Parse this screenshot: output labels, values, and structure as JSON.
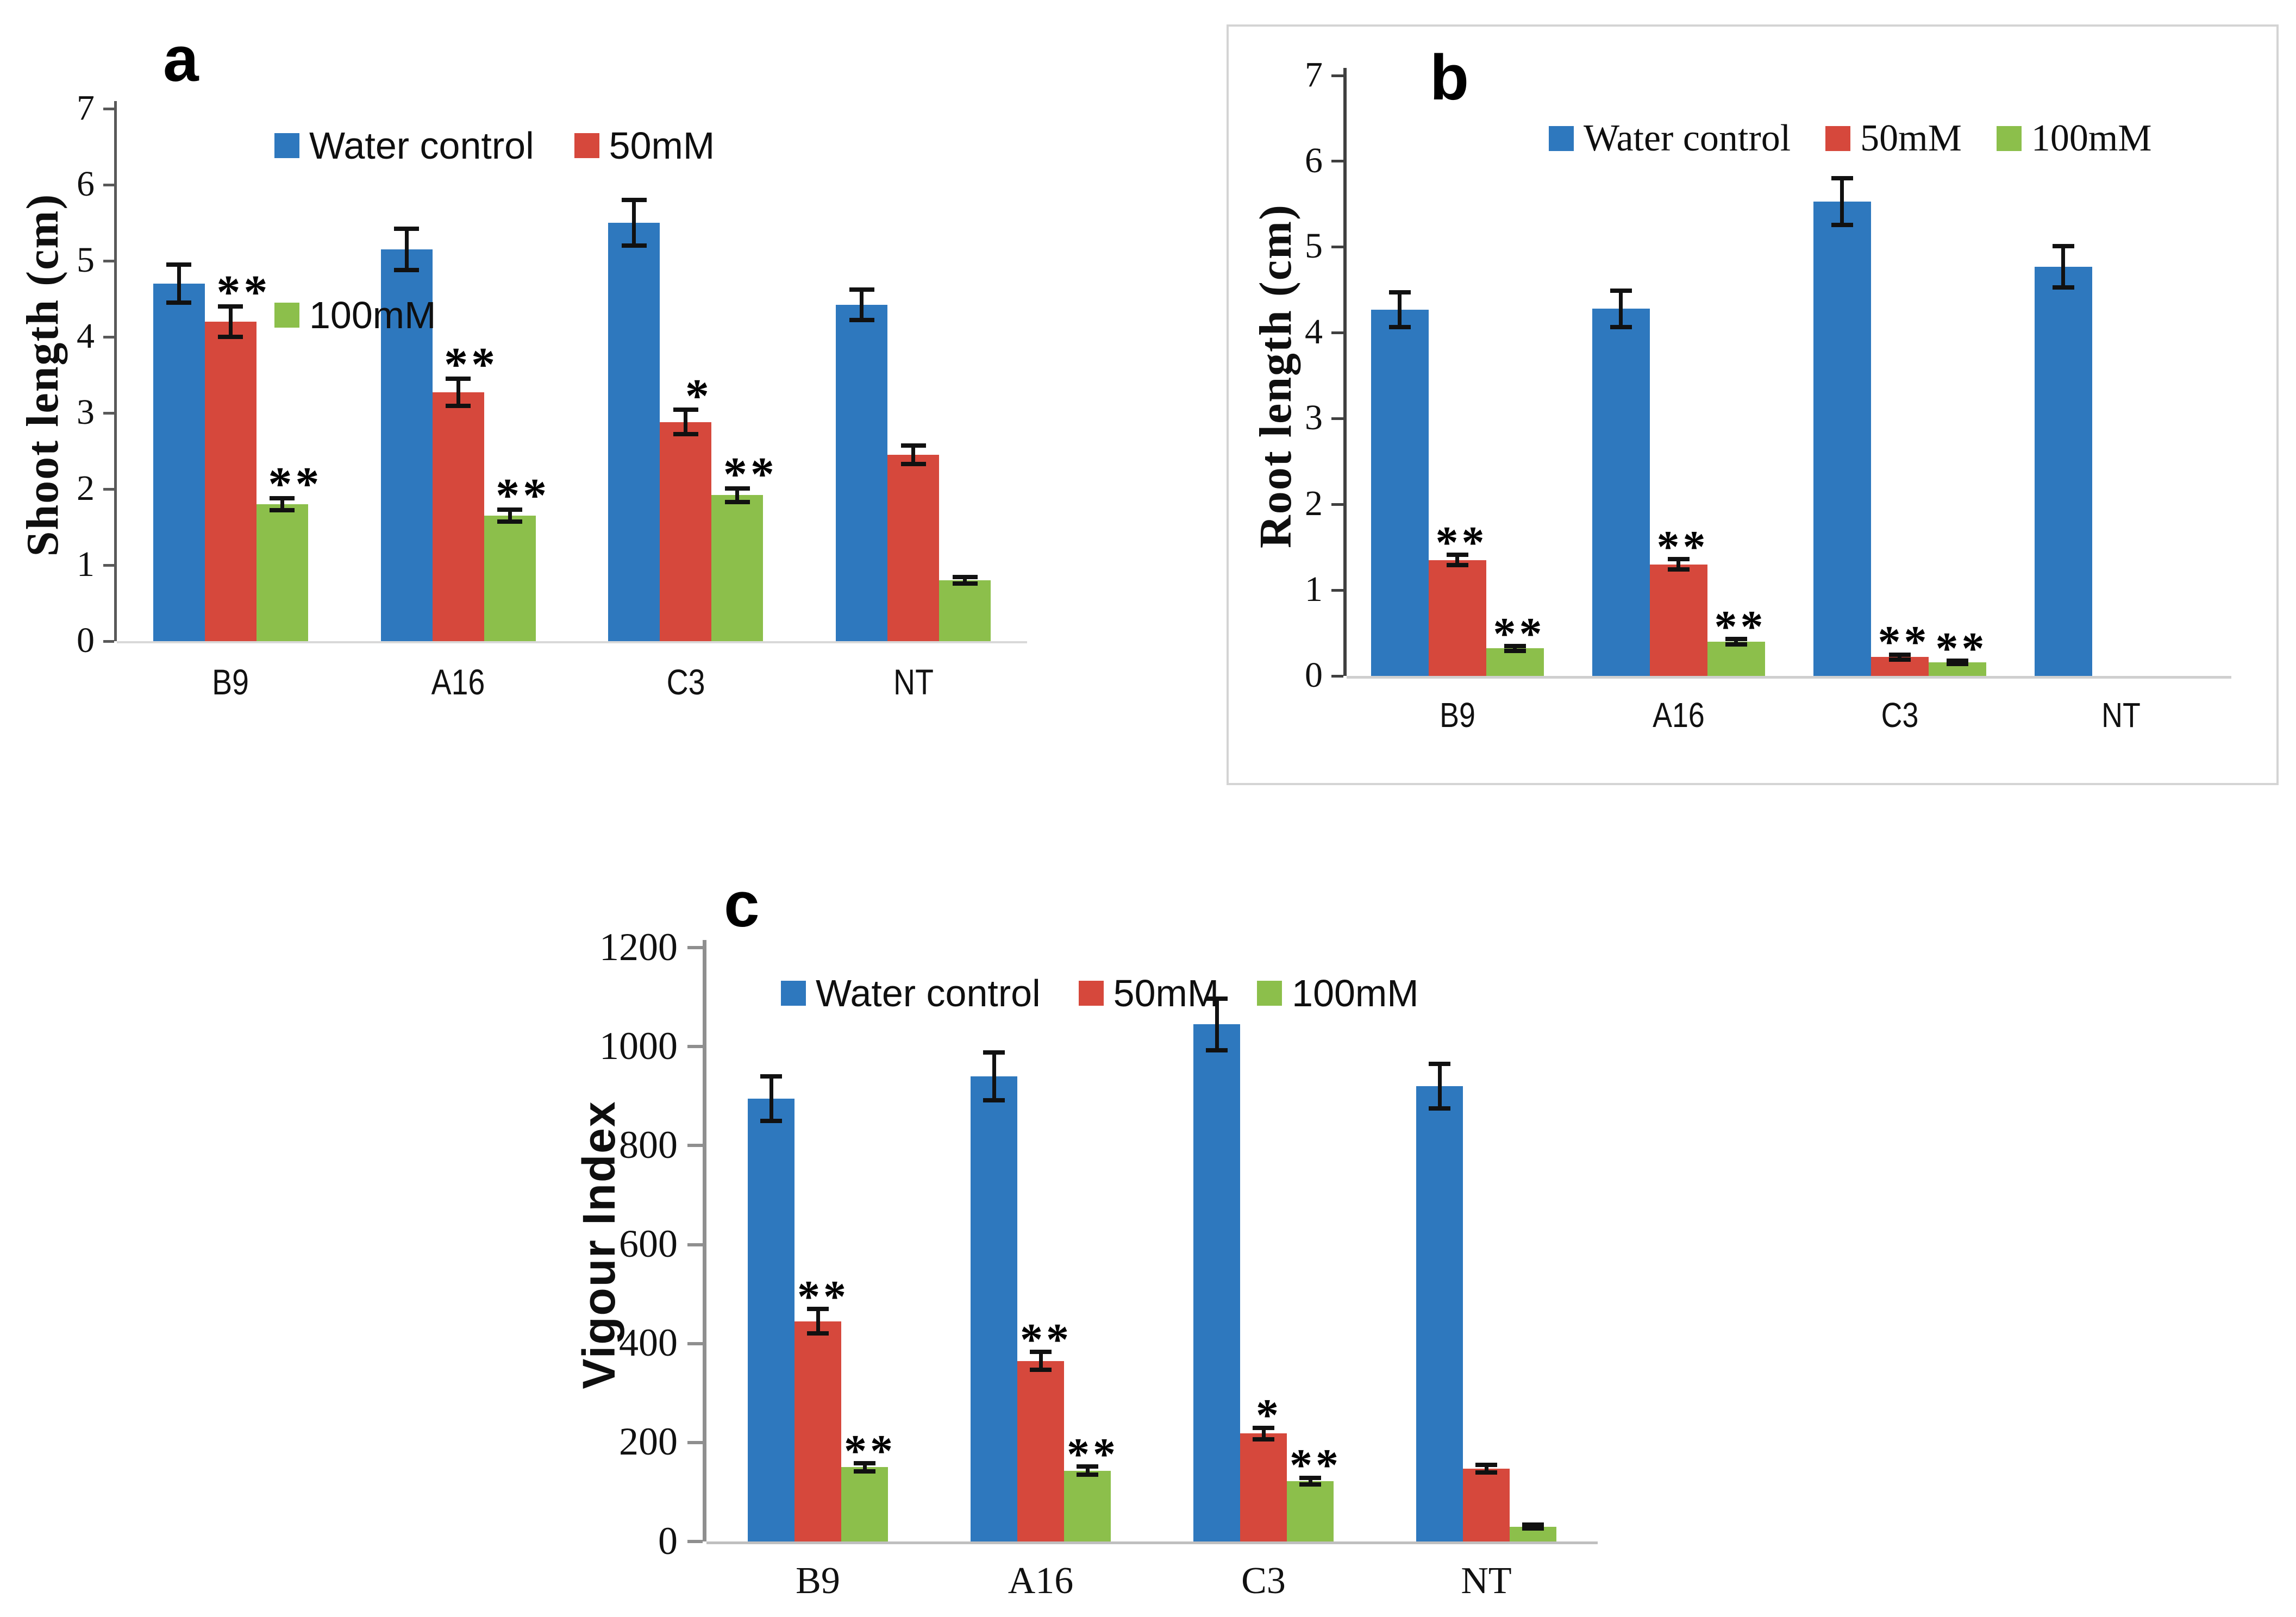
{
  "figure": {
    "background": "#ffffff",
    "panel_letters": [
      "a",
      "b",
      "c"
    ],
    "series_colors": {
      "water_control": "#2E78BE",
      "salt_50mM": "#D6483C",
      "salt_100mM": "#8CBF4B"
    },
    "error_bar_color": "#111111",
    "significance_marks": [
      "*",
      "**"
    ]
  },
  "chart_data": [
    {
      "type": "bar",
      "panel": "a",
      "title": "",
      "xlabel": "",
      "ylabel": "Shoot length (cm)",
      "ylim": [
        0,
        7
      ],
      "ytick_step": 1,
      "grid": false,
      "legend_position": "inside top-left, two rows",
      "categories": [
        "B9",
        "A16",
        "C3",
        "NT"
      ],
      "series": [
        {
          "name": "Water control",
          "color": "#2E78BE",
          "values": [
            4.7,
            5.15,
            5.5,
            4.42
          ],
          "errors": [
            0.25,
            0.27,
            0.3,
            0.2
          ],
          "sig": [
            "",
            "",
            "",
            ""
          ]
        },
        {
          "name": "50mM",
          "color": "#D6483C",
          "values": [
            4.2,
            3.27,
            2.88,
            2.45
          ],
          "errors": [
            0.2,
            0.18,
            0.16,
            0.12
          ],
          "sig": [
            "**",
            "**",
            "*",
            ""
          ]
        },
        {
          "name": "100mM",
          "color": "#8CBF4B",
          "values": [
            1.8,
            1.65,
            1.92,
            0.8
          ],
          "errors": [
            0.08,
            0.08,
            0.09,
            0.04
          ],
          "sig": [
            "**",
            "**",
            "**",
            ""
          ]
        }
      ]
    },
    {
      "type": "bar",
      "panel": "b",
      "title": "",
      "xlabel": "",
      "ylabel": "Root length (cm)",
      "ylim": [
        0,
        7
      ],
      "ytick_step": 1,
      "grid": false,
      "framed": true,
      "legend_position": "inside top, single row",
      "categories": [
        "B9",
        "A16",
        "C3",
        "NT"
      ],
      "series": [
        {
          "name": "Water control",
          "color": "#2E78BE",
          "values": [
            4.27,
            4.28,
            5.53,
            4.77
          ],
          "errors": [
            0.2,
            0.21,
            0.27,
            0.24
          ],
          "sig": [
            "",
            "",
            "",
            ""
          ]
        },
        {
          "name": "50mM",
          "color": "#D6483C",
          "values": [
            1.35,
            1.3,
            0.22,
            0
          ],
          "errors": [
            0.06,
            0.06,
            0.03,
            0
          ],
          "sig": [
            "**",
            "**",
            "**",
            ""
          ]
        },
        {
          "name": "100mM",
          "color": "#8CBF4B",
          "values": [
            0.32,
            0.4,
            0.16,
            0
          ],
          "errors": [
            0.03,
            0.03,
            0.02,
            0
          ],
          "sig": [
            "**",
            "**",
            "**",
            ""
          ]
        }
      ]
    },
    {
      "type": "bar",
      "panel": "c",
      "title": "",
      "xlabel": "",
      "ylabel": "Vigour Index",
      "ylim": [
        0,
        1200
      ],
      "ytick_step": 200,
      "grid": false,
      "legend_position": "inside top, single row",
      "categories": [
        "B9",
        "A16",
        "C3",
        "NT"
      ],
      "series": [
        {
          "name": "Water control",
          "color": "#2E78BE",
          "values": [
            895,
            940,
            1045,
            920
          ],
          "errors": [
            45,
            48,
            52,
            45
          ],
          "sig": [
            "",
            "",
            "",
            ""
          ]
        },
        {
          "name": "50mM",
          "color": "#D6483C",
          "values": [
            445,
            365,
            218,
            147
          ],
          "errors": [
            25,
            18,
            12,
            8
          ],
          "sig": [
            "**",
            "**",
            "*",
            ""
          ]
        },
        {
          "name": "100mM",
          "color": "#8CBF4B",
          "values": [
            150,
            143,
            122,
            30
          ],
          "errors": [
            8,
            8,
            7,
            4
          ],
          "sig": [
            "**",
            "**",
            "**",
            ""
          ]
        }
      ]
    }
  ]
}
